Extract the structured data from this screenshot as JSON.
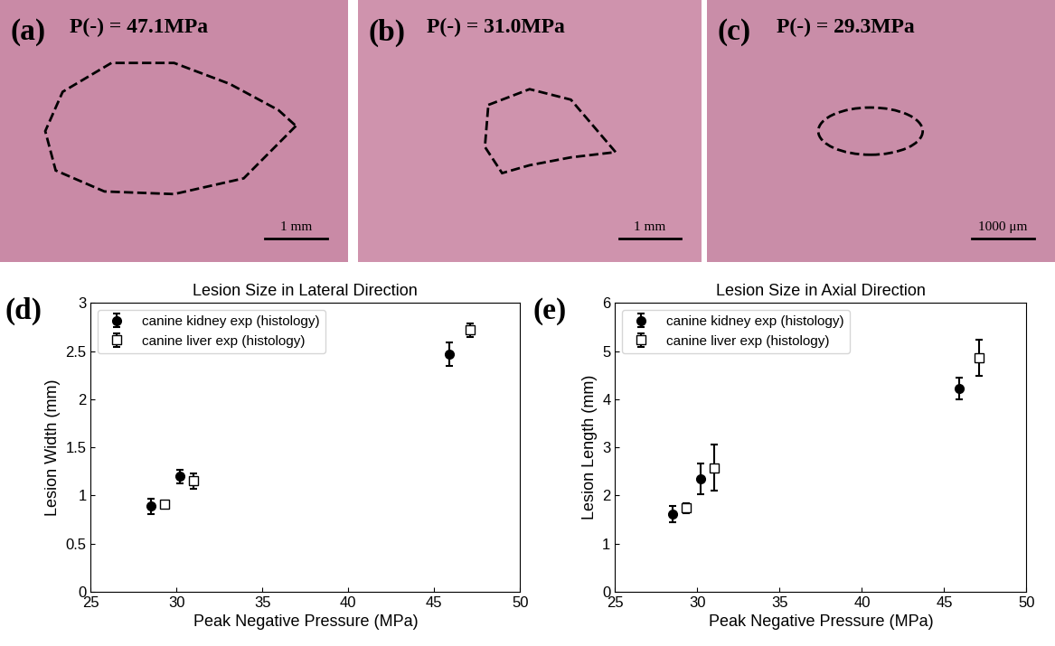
{
  "images": [
    {
      "label": "(a)",
      "text": "P(-) = 47.1MPa",
      "scale_bar": "1 mm"
    },
    {
      "label": "(b)",
      "text": "P(-) = 31.0MPa",
      "scale_bar": "1 mm"
    },
    {
      "label": "(c)",
      "text": "P(-) = 29.3MPa",
      "scale_bar": "1000 μm"
    }
  ],
  "chart_data": [
    {
      "type": "scatter",
      "panel_label": "(d)",
      "title": "Lesion Size in Lateral Direction",
      "x_label": "Peak Negative Pressure (MPa)",
      "y_label": "Lesion Width (mm)",
      "xlim": [
        25,
        50
      ],
      "xticks": [
        25,
        30,
        35,
        40,
        45,
        50
      ],
      "ylim": [
        0,
        3
      ],
      "yticks": [
        0,
        0.5,
        1,
        1.5,
        2,
        2.5,
        3
      ],
      "legend": "upper left",
      "series": [
        {
          "name": "canine kidney exp (histology)",
          "color": "#000000",
          "marker": "circle",
          "x": [
            28.5,
            30.2,
            45.9
          ],
          "values": [
            0.89,
            1.2,
            2.47
          ],
          "error": [
            0.08,
            0.07,
            0.12
          ]
        },
        {
          "name": "canine liver exp (histology)",
          "color": "#000000",
          "marker": "open square",
          "x": [
            29.3,
            31.0,
            47.1
          ],
          "values": [
            0.91,
            1.15,
            2.72
          ],
          "error": [
            0.03,
            0.08,
            0.07
          ]
        }
      ]
    },
    {
      "type": "scatter",
      "panel_label": "(e)",
      "title": "Lesion Size in Axial Direction",
      "x_label": "Peak Negative Pressure (MPa)",
      "y_label": "Lesion Length (mm)",
      "xlim": [
        25,
        50
      ],
      "xticks": [
        25,
        30,
        35,
        40,
        45,
        50
      ],
      "ylim": [
        0,
        6
      ],
      "yticks": [
        0,
        1,
        2,
        3,
        4,
        5,
        6
      ],
      "legend": "upper left",
      "series": [
        {
          "name": "canine kidney exp (histology)",
          "color": "#000000",
          "marker": "circle",
          "x": [
            28.5,
            30.2,
            45.9
          ],
          "values": [
            1.62,
            2.35,
            4.22
          ],
          "error": [
            0.17,
            0.32,
            0.23
          ]
        },
        {
          "name": "canine liver exp (histology)",
          "color": "#000000",
          "marker": "open square",
          "x": [
            29.3,
            31.0,
            47.1
          ],
          "values": [
            1.74,
            2.58,
            4.86
          ],
          "error": [
            0.1,
            0.48,
            0.38
          ]
        }
      ]
    }
  ]
}
